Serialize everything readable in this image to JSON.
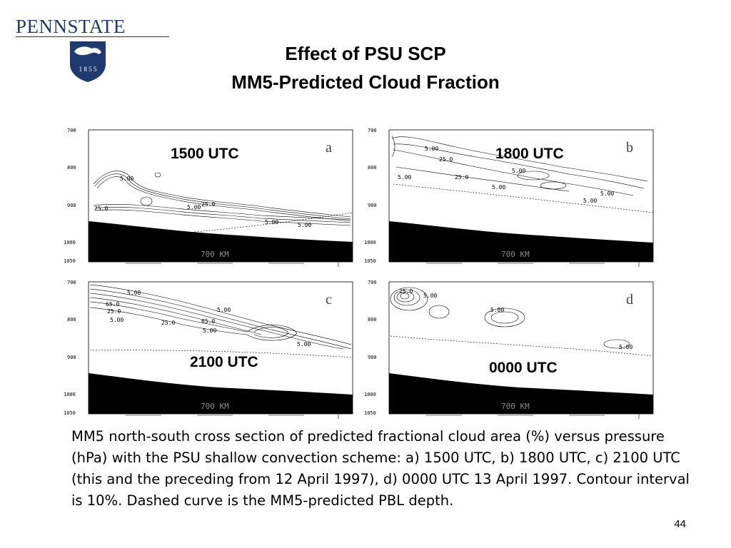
{
  "logo": {
    "text": "PENNSTATE",
    "year": "1 8 5 5"
  },
  "slide": {
    "title_line1": "Effect of PSU SCP",
    "title_line2": "MM5-Predicted Cloud Fraction",
    "caption": "MM5 north-south cross section of predicted fractional cloud area (%) versus pressure (hPa) with the PSU shallow convection scheme: a) 1500 UTC, b) 1800 UTC, c) 2100 UTC (this and the preceding from 12 April 1997), d) 0000 UTC 13 April 1997.  Contour interval is 10%.  Dashed curve is the MM5-predicted PBL depth.",
    "page_number": "44"
  },
  "panels": [
    {
      "letter": "a",
      "time": "1500 UTC",
      "scale_label": "700 KM",
      "yticks": [
        "700",
        "800",
        "900",
        "1000",
        "1050"
      ],
      "contour_labels": [
        "5.00",
        "25.0",
        "5.00",
        "25.0",
        "5.00",
        "5.00"
      ]
    },
    {
      "letter": "b",
      "time": "1800 UTC",
      "scale_label": "700 KM",
      "yticks": [
        "700",
        "800",
        "900",
        "1000",
        "1050"
      ],
      "contour_labels": [
        "5.00",
        "25.0",
        "5.00",
        "5.00",
        "25.0",
        "5.00",
        "5.00",
        "5.00"
      ]
    },
    {
      "letter": "c",
      "time": "2100 UTC",
      "scale_label": "700 KM",
      "yticks": [
        "700",
        "800",
        "900",
        "1000",
        "1050"
      ],
      "contour_labels": [
        "5.00",
        "65.0",
        "25.0",
        "5.00",
        "5.00",
        "65.0",
        "25.0",
        "5.00",
        "5.00"
      ]
    },
    {
      "letter": "d",
      "time": "0000 UTC",
      "scale_label": "700 KM",
      "yticks": [
        "700",
        "800",
        "900",
        "1000",
        "1050"
      ],
      "contour_labels": [
        "25.0",
        "5.00",
        "5.00",
        "5.00"
      ]
    }
  ]
}
